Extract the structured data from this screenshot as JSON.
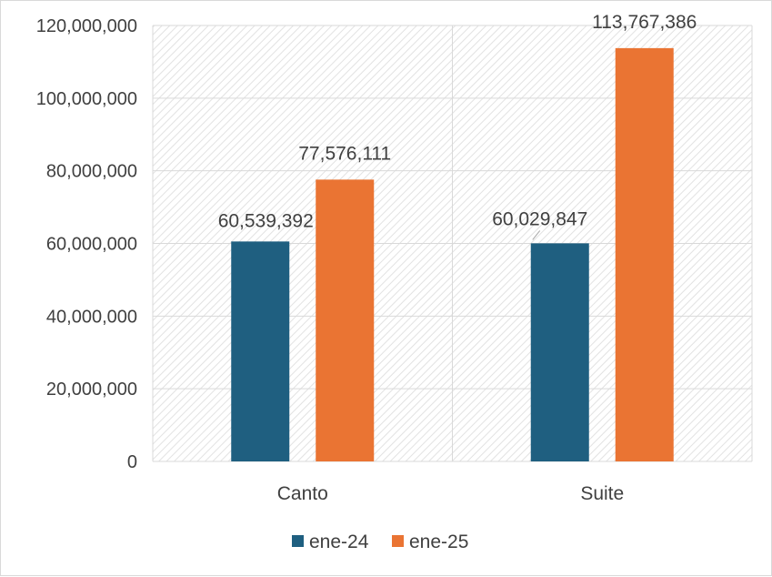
{
  "chart_data": {
    "type": "bar",
    "title": "",
    "xlabel": "",
    "ylabel": "",
    "categories": [
      "Canto",
      "Suite"
    ],
    "series": [
      {
        "name": "ene-24",
        "color": "#1f5f80",
        "values": [
          60539392,
          60029847
        ],
        "labels": [
          "60,539,392",
          "60,029,847"
        ]
      },
      {
        "name": "ene-25",
        "color": "#ea7433",
        "values": [
          77576111,
          113767386
        ],
        "labels": [
          "77,576,111",
          "113,767,386"
        ]
      }
    ],
    "ylim": [
      0,
      120000000
    ],
    "yticks": [
      0,
      20000000,
      40000000,
      60000000,
      80000000,
      100000000,
      120000000
    ],
    "ytick_labels": [
      "0",
      "20,000,000",
      "40,000,000",
      "60,000,000",
      "80,000,000",
      "100,000,000",
      "120,000,000"
    ],
    "grid": true,
    "legend_position": "bottom"
  }
}
